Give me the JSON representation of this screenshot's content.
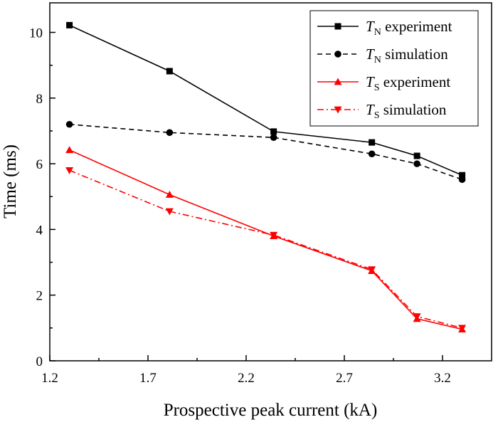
{
  "chart_data": {
    "type": "line",
    "title": "",
    "xlabel": "Prospective peak current (kA)",
    "ylabel": "Time (ms)",
    "xlim": [
      1.2,
      3.45
    ],
    "ylim": [
      0,
      10.9
    ],
    "xticks": [
      1.2,
      1.7,
      2.2,
      2.7,
      3.2
    ],
    "xtick_labels": [
      "1.2",
      "1.7",
      "2.2",
      "2.7",
      "3.2"
    ],
    "yticks": [
      0,
      2,
      4,
      6,
      8,
      10
    ],
    "ytick_labels": [
      "0",
      "2",
      "4",
      "6",
      "8",
      "10"
    ],
    "grid": false,
    "legend_position": "top-right",
    "x": [
      1.3,
      1.81,
      2.34,
      2.84,
      3.07,
      3.3
    ],
    "series": [
      {
        "name_main": "T",
        "name_sub": "N",
        "name_rest": " experiment",
        "color": "#000000",
        "dash": "solid",
        "marker": "square",
        "values": [
          10.22,
          8.82,
          6.98,
          6.65,
          6.24,
          5.65
        ]
      },
      {
        "name_main": "T",
        "name_sub": "N",
        "name_rest": " simulation",
        "color": "#000000",
        "dash": "dashed",
        "marker": "circle",
        "values": [
          7.2,
          6.95,
          6.8,
          6.3,
          6.0,
          5.52
        ]
      },
      {
        "name_main": "T",
        "name_sub": "S",
        "name_rest": " experiment",
        "color": "#ff0000",
        "dash": "solid",
        "marker": "triangle-up",
        "values": [
          6.42,
          5.06,
          3.8,
          2.74,
          1.28,
          0.96
        ]
      },
      {
        "name_main": "T",
        "name_sub": "S",
        "name_rest": " simulation",
        "color": "#ff0000",
        "dash": "dashdot",
        "marker": "triangle-down",
        "values": [
          5.8,
          4.55,
          3.83,
          2.78,
          1.35,
          1.0
        ]
      }
    ]
  }
}
